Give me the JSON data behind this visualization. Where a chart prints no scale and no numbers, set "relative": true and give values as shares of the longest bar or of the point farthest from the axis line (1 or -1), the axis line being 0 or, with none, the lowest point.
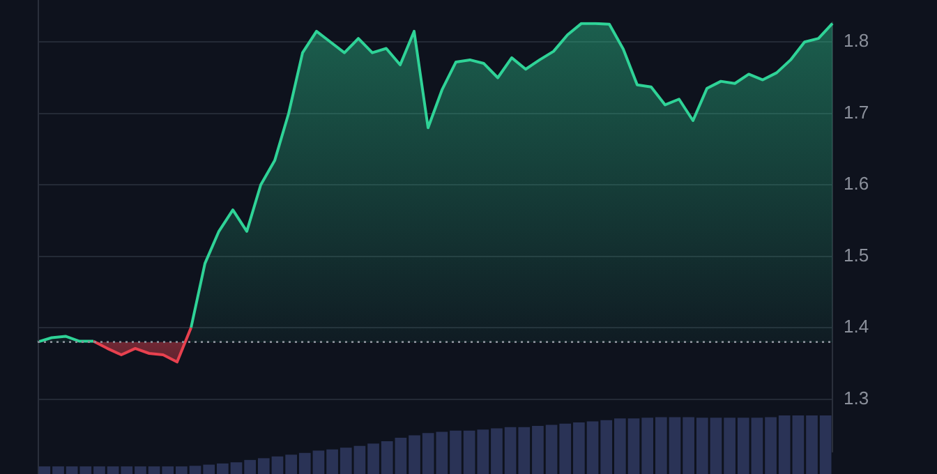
{
  "chart_data": [
    {
      "type": "area",
      "categories": [
        null,
        null,
        null,
        null,
        null,
        null,
        null,
        null,
        null,
        null,
        null,
        null,
        null,
        null,
        null,
        null,
        null,
        null,
        null,
        null,
        null,
        null,
        null,
        null,
        null,
        null,
        null,
        null,
        null,
        null,
        null,
        null,
        null,
        null,
        null,
        null,
        null,
        null,
        null,
        null,
        null,
        null,
        null,
        null,
        null,
        null,
        null,
        null,
        null,
        null,
        null,
        null,
        null,
        null,
        null,
        null,
        null,
        null
      ],
      "series": [
        {
          "color": "#2fd397",
          "values": [
            1.38,
            1.386,
            1.388,
            1.381,
            1.381,
            null,
            null,
            null,
            null,
            null,
            null,
            null,
            null,
            null,
            null,
            null,
            null,
            null,
            null,
            null,
            null,
            null,
            null,
            null,
            null,
            null,
            null,
            null,
            null,
            null,
            null,
            null,
            null,
            null,
            null,
            null,
            null,
            null,
            null,
            null,
            null,
            null,
            null,
            null,
            null,
            null,
            null,
            null,
            null,
            null,
            null,
            null,
            null,
            null,
            null,
            null,
            null,
            null
          ]
        },
        {
          "color": "#e8414f",
          "values": [
            null,
            null,
            null,
            null,
            1.381,
            1.371,
            1.362,
            1.371,
            1.364,
            1.362,
            1.352,
            1.4,
            null,
            null,
            null,
            null,
            null,
            null,
            null,
            null,
            null,
            null,
            null,
            null,
            null,
            null,
            null,
            null,
            null,
            null,
            null,
            null,
            null,
            null,
            null,
            null,
            null,
            null,
            null,
            null,
            null,
            null,
            null,
            null,
            null,
            null,
            null,
            null,
            null,
            null,
            null,
            null,
            null,
            null,
            null,
            null,
            null,
            null
          ]
        },
        {
          "color": "#2fd397",
          "values": [
            null,
            null,
            null,
            null,
            null,
            null,
            null,
            null,
            null,
            null,
            null,
            1.4,
            1.49,
            1.535,
            1.565,
            1.535,
            1.6,
            1.634,
            1.7,
            1.785,
            1.815,
            1.8,
            1.785,
            1.805,
            1.785,
            1.791,
            1.768,
            1.815,
            1.68,
            1.733,
            1.772,
            1.775,
            1.77,
            1.75,
            1.778,
            1.762,
            1.775,
            1.787,
            1.81,
            1.826,
            1.826,
            1.825,
            1.79,
            1.74,
            1.737,
            1.712,
            1.72,
            1.69,
            1.735,
            1.745,
            1.742,
            1.755,
            1.747,
            1.757,
            1.775,
            1.8,
            1.805,
            1.826
          ]
        }
      ],
      "ylim": [
        1.226,
        1.828
      ],
      "yticks": [
        1.3,
        1.4,
        1.5,
        1.6,
        1.7,
        1.8
      ],
      "grid": "y",
      "legend": false,
      "marker": "none",
      "tick_labels": "y",
      "ref_lines": [
        {
          "axis": "y",
          "value": 1.38,
          "color": "#8a8f99",
          "line_style": "dotted"
        }
      ]
    },
    {
      "type": "bar",
      "relative": true,
      "color": "#2a3356",
      "tick_labels": false,
      "categories": [
        null,
        null,
        null,
        null,
        null,
        null,
        null,
        null,
        null,
        null,
        null,
        null,
        null,
        null,
        null,
        null,
        null,
        null,
        null,
        null,
        null,
        null,
        null,
        null,
        null,
        null,
        null,
        null,
        null,
        null,
        null,
        null,
        null,
        null,
        null,
        null,
        null,
        null,
        null,
        null,
        null,
        null,
        null,
        null,
        null,
        null,
        null,
        null,
        null,
        null,
        null,
        null,
        null,
        null,
        null,
        null,
        null,
        null
      ],
      "values": [
        0.13,
        0.13,
        0.13,
        0.13,
        0.13,
        0.13,
        0.13,
        0.13,
        0.13,
        0.13,
        0.13,
        0.14,
        0.16,
        0.18,
        0.2,
        0.24,
        0.27,
        0.3,
        0.33,
        0.36,
        0.4,
        0.42,
        0.45,
        0.48,
        0.52,
        0.56,
        0.62,
        0.66,
        0.7,
        0.72,
        0.74,
        0.74,
        0.76,
        0.78,
        0.8,
        0.8,
        0.82,
        0.84,
        0.86,
        0.88,
        0.9,
        0.92,
        0.95,
        0.95,
        0.96,
        0.97,
        0.97,
        0.97,
        0.96,
        0.96,
        0.96,
        0.96,
        0.96,
        0.97,
        1,
        1,
        1,
        1
      ]
    }
  ]
}
